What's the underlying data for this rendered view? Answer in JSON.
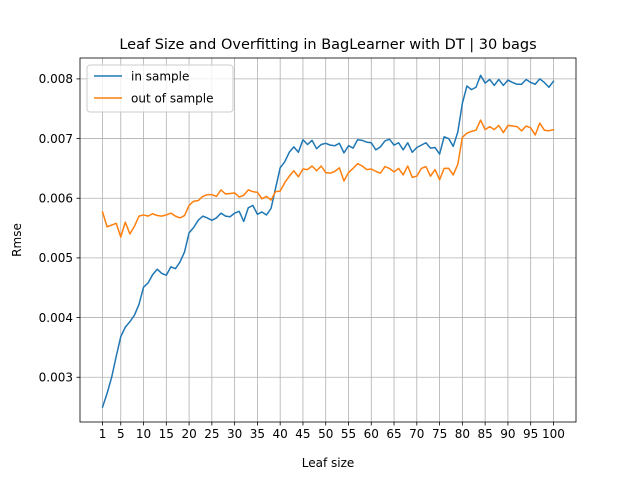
{
  "chart_data": {
    "type": "line",
    "title": "Leaf Size and Overfitting in BagLearner with DT | 30 bags",
    "xlabel": "Leaf size",
    "ylabel": "Rmse",
    "xlim": [
      -3.95,
      104.95
    ],
    "ylim": [
      0.00225,
      0.00835
    ],
    "xticks": [
      1,
      5,
      10,
      15,
      20,
      25,
      30,
      35,
      40,
      45,
      50,
      55,
      60,
      65,
      70,
      75,
      80,
      85,
      90,
      95,
      100
    ],
    "xtick_labels": [
      "1",
      "5",
      "10",
      "15",
      "20",
      "25",
      "30",
      "35",
      "40",
      "45",
      "50",
      "55",
      "60",
      "65",
      "70",
      "75",
      "80",
      "85",
      "90",
      "95",
      "100"
    ],
    "yticks": [
      0.003,
      0.004,
      0.005,
      0.006,
      0.007,
      0.008
    ],
    "ytick_labels": [
      "0.003",
      "0.004",
      "0.005",
      "0.006",
      "0.007",
      "0.008"
    ],
    "grid": true,
    "legend_position": "upper left",
    "x": [
      1,
      2,
      3,
      4,
      5,
      6,
      7,
      8,
      9,
      10,
      11,
      12,
      13,
      14,
      15,
      16,
      17,
      18,
      19,
      20,
      21,
      22,
      23,
      24,
      25,
      26,
      27,
      28,
      29,
      30,
      31,
      32,
      33,
      34,
      35,
      36,
      37,
      38,
      39,
      40,
      41,
      42,
      43,
      44,
      45,
      46,
      47,
      48,
      49,
      50,
      51,
      52,
      53,
      54,
      55,
      56,
      57,
      58,
      59,
      60,
      61,
      62,
      63,
      64,
      65,
      66,
      67,
      68,
      69,
      70,
      71,
      72,
      73,
      74,
      75,
      76,
      77,
      78,
      79,
      80,
      81,
      82,
      83,
      84,
      85,
      86,
      87,
      88,
      89,
      90,
      91,
      92,
      93,
      94,
      95,
      96,
      97,
      98,
      99,
      100
    ],
    "series": [
      {
        "name": "in sample",
        "color": "#1f77b4",
        "values": [
          0.0025,
          0.00273,
          0.003,
          0.00335,
          0.00368,
          0.00384,
          0.00393,
          0.00404,
          0.00422,
          0.00451,
          0.00458,
          0.00472,
          0.00481,
          0.00474,
          0.00471,
          0.00485,
          0.00482,
          0.00493,
          0.0051,
          0.00542,
          0.00551,
          0.00563,
          0.0057,
          0.00567,
          0.00563,
          0.00567,
          0.00575,
          0.0057,
          0.00569,
          0.00575,
          0.00578,
          0.00561,
          0.00584,
          0.00588,
          0.00573,
          0.00577,
          0.00572,
          0.00583,
          0.00617,
          0.00651,
          0.00661,
          0.00677,
          0.00686,
          0.00677,
          0.00698,
          0.0069,
          0.00697,
          0.00683,
          0.0069,
          0.00692,
          0.00689,
          0.00688,
          0.00692,
          0.00676,
          0.00688,
          0.00684,
          0.00698,
          0.00697,
          0.00694,
          0.00693,
          0.00681,
          0.00686,
          0.00696,
          0.00699,
          0.00689,
          0.00693,
          0.00681,
          0.00693,
          0.00677,
          0.00685,
          0.00689,
          0.00693,
          0.00684,
          0.00685,
          0.00674,
          0.00703,
          0.007,
          0.00687,
          0.00711,
          0.00759,
          0.00788,
          0.00782,
          0.00786,
          0.00806,
          0.00793,
          0.00799,
          0.00789,
          0.00799,
          0.00789,
          0.00798,
          0.00794,
          0.00791,
          0.00791,
          0.00799,
          0.00794,
          0.00791,
          0.008,
          0.00794,
          0.00786,
          0.00796
        ]
      },
      {
        "name": "out of sample",
        "color": "#ff7f0e",
        "values": [
          0.00577,
          0.00552,
          0.00555,
          0.00558,
          0.00535,
          0.0056,
          0.0054,
          0.00553,
          0.0057,
          0.00572,
          0.0057,
          0.00574,
          0.00571,
          0.0057,
          0.00572,
          0.00575,
          0.0057,
          0.00567,
          0.00571,
          0.00588,
          0.00595,
          0.00596,
          0.00603,
          0.00606,
          0.00606,
          0.00603,
          0.00614,
          0.00607,
          0.00608,
          0.00609,
          0.00602,
          0.00605,
          0.00614,
          0.00611,
          0.0061,
          0.00599,
          0.00603,
          0.00597,
          0.00611,
          0.00612,
          0.00626,
          0.00637,
          0.00646,
          0.00636,
          0.00649,
          0.00648,
          0.00654,
          0.00646,
          0.00654,
          0.00643,
          0.00642,
          0.00645,
          0.00651,
          0.00629,
          0.00643,
          0.0065,
          0.00658,
          0.00654,
          0.00648,
          0.00649,
          0.00645,
          0.00642,
          0.00653,
          0.0065,
          0.00644,
          0.0065,
          0.00639,
          0.00654,
          0.00635,
          0.00637,
          0.0065,
          0.00653,
          0.00637,
          0.00648,
          0.00631,
          0.0065,
          0.0065,
          0.00639,
          0.00657,
          0.00702,
          0.00709,
          0.00712,
          0.00714,
          0.00731,
          0.00715,
          0.0072,
          0.00715,
          0.00722,
          0.0071,
          0.00722,
          0.00721,
          0.0072,
          0.00713,
          0.00721,
          0.00718,
          0.00706,
          0.00726,
          0.00714,
          0.00713,
          0.00715
        ]
      }
    ]
  }
}
